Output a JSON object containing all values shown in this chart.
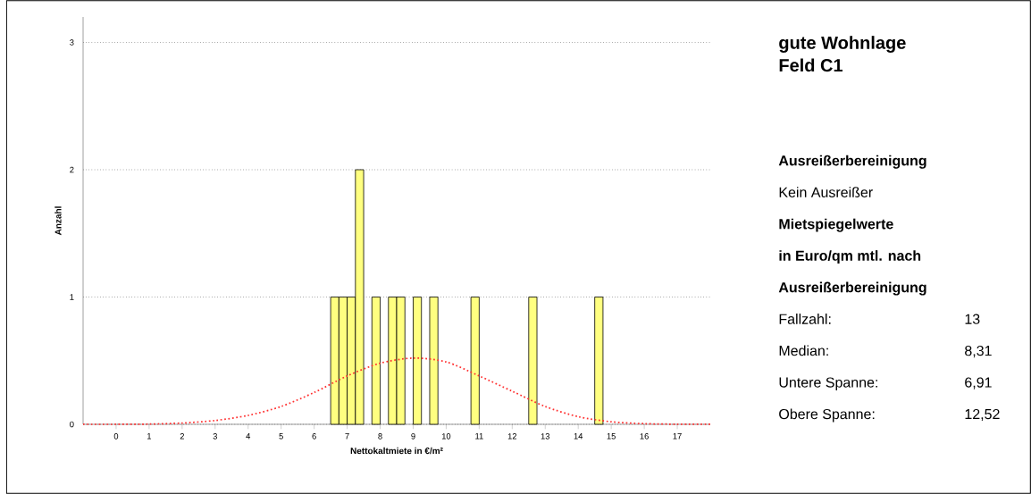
{
  "chart_data": {
    "type": "bar",
    "title": "gute Wohnlage",
    "subtitle": "Feld C1",
    "xlabel": "Nettokaltmiete in €/m²",
    "ylabel": "Anzahl",
    "series": [
      {
        "color": "#ffff80",
        "x": [
          6.625,
          6.875,
          7.125,
          7.375,
          7.875,
          8.375,
          8.625,
          9.125,
          9.625,
          10.875,
          12.625,
          14.625
        ],
        "values": [
          1,
          1,
          1,
          2,
          1,
          1,
          1,
          1,
          1,
          1,
          1,
          1
        ]
      },
      {
        "type": "line",
        "color": "#ff3030",
        "line_style": "dotted",
        "x": [
          -1,
          0,
          1,
          2,
          3,
          4,
          5,
          6,
          7,
          8,
          9,
          10,
          11,
          12,
          13,
          14,
          15,
          16,
          17,
          18
        ],
        "values": [
          0,
          0,
          0.002,
          0.01,
          0.03,
          0.07,
          0.14,
          0.25,
          0.38,
          0.48,
          0.52,
          0.49,
          0.38,
          0.26,
          0.14,
          0.06,
          0.02,
          0.005,
          0.001,
          0
        ]
      }
    ],
    "xlim": [
      -1,
      18
    ],
    "ylim": [
      0,
      3.2
    ],
    "xticks": [
      0,
      1,
      2,
      3,
      4,
      5,
      6,
      7,
      8,
      9,
      10,
      11,
      12,
      13,
      14,
      15,
      16,
      17
    ],
    "yticks": [
      0,
      1,
      2,
      3
    ],
    "grid": "y",
    "annotations": [
      "Ausreißerbereinigung",
      "Kein Ausreißer",
      "Mietspiegelwerte",
      "in Euro/qm mtl. nach",
      "Ausreißerbereinigung",
      "Fallzahl:",
      "13",
      "Median:",
      "8,31",
      "Untere Spanne:",
      "6,91",
      "Obere Spanne:",
      "12,52"
    ]
  }
}
